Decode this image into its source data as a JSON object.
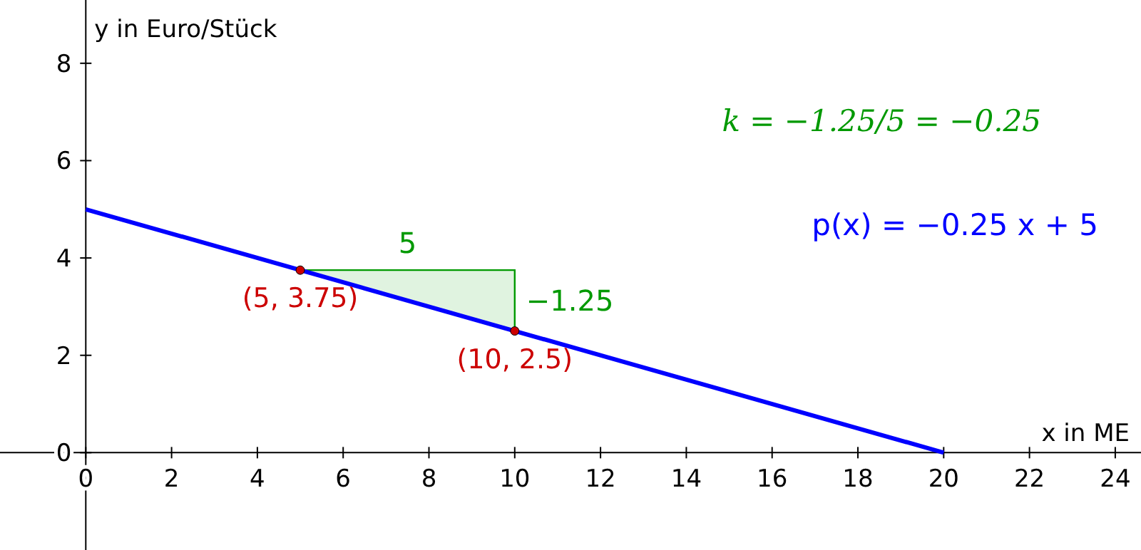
{
  "chart_data": {
    "type": "line",
    "xlabel": "x in ME",
    "ylabel": "y in Euro/Stück",
    "xlim": [
      -2,
      24.6
    ],
    "ylim": [
      -2,
      9.3
    ],
    "xticks": [
      0,
      2,
      4,
      6,
      8,
      10,
      12,
      14,
      16,
      18,
      20,
      22,
      24
    ],
    "yticks": [
      0,
      2,
      4,
      6,
      8
    ],
    "grid": false,
    "series": [
      {
        "type": "area",
        "color": "#009900",
        "x": [
          5,
          10,
          10
        ],
        "values": [
          3.75,
          3.75,
          2.5
        ]
      },
      {
        "name": "p(x) = −0.25 x + 5",
        "color": "#0000ff",
        "x": [
          0,
          20
        ],
        "values": [
          5,
          0
        ]
      },
      {
        "type": "scatter",
        "color": "#cc0000",
        "marker": "circle",
        "x": [
          5,
          10
        ],
        "values": [
          3.75,
          2.5
        ],
        "value_labels": [
          "(5, 3.75)",
          "(10, 2.5)"
        ]
      }
    ],
    "annotations": [
      {
        "text": "5",
        "x": 7.5,
        "y": 3.75
      },
      {
        "text": "−1.25",
        "x": 10,
        "y": 3.125
      },
      "k = −1.25/5 = −0.25"
    ]
  }
}
